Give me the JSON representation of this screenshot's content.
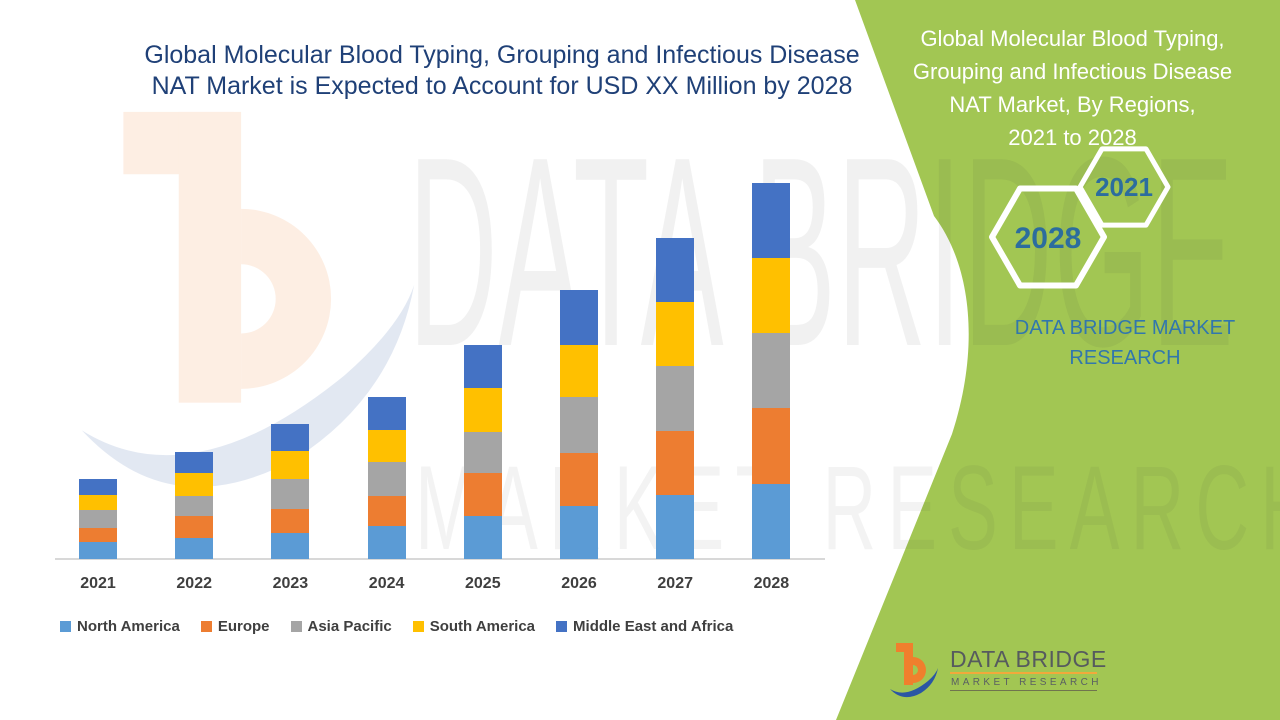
{
  "colors": {
    "green_band": "#A2C653",
    "title_navy": "#1F4077",
    "hex_year_blue": "#2C6D9E",
    "brand_blue": "#3177AD",
    "axis_gray": "#D8D8D8",
    "label_gray": "#3F3F3F",
    "logo_text_gray": "#565B5E",
    "logo_orange": "#F07F2D",
    "logo_swoosh_blue": "#2A56A4"
  },
  "main_title": {
    "lines": [
      "Global Molecular Blood Typing, Grouping and Infectious Disease",
      "NAT Market is Expected to Account for USD XX Million by 2028"
    ]
  },
  "right_panel": {
    "title_lines": [
      "Global Molecular Blood Typing,",
      "Grouping and Infectious Disease",
      "NAT Market, By Regions,",
      "2021 to 2028"
    ],
    "hexagons": [
      {
        "label": "2021"
      },
      {
        "label": "2028"
      }
    ],
    "brand_text_lines": [
      "DATA BRIDGE MARKET",
      "RESEARCH"
    ]
  },
  "watermark": {
    "line1": "DATA BRIDGE",
    "line2": "MARKET RESEARCH"
  },
  "footer_logo": {
    "line1": "DATA BRIDGE",
    "line2": "MARKET RESEARCH"
  },
  "chart_data": {
    "type": "bar",
    "stacked": true,
    "title": "Global Molecular Blood Typing, Grouping and Infectious Disease NAT Market is Expected to Account for USD XX Million by 2028",
    "categories": [
      "2021",
      "2022",
      "2023",
      "2024",
      "2025",
      "2026",
      "2027",
      "2028"
    ],
    "series": [
      {
        "name": "North America",
        "color": "#5B9BD5",
        "values": [
          17,
          21,
          26,
          33,
          43,
          53,
          64,
          75
        ]
      },
      {
        "name": "Europe",
        "color": "#ED7D31",
        "values": [
          14,
          22,
          24,
          30,
          43,
          53,
          64,
          76
        ]
      },
      {
        "name": "Asia Pacific",
        "color": "#A5A5A5",
        "values": [
          18,
          20,
          30,
          34,
          41,
          56,
          65,
          75
        ]
      },
      {
        "name": "South America",
        "color": "#FFC000",
        "values": [
          15,
          23,
          28,
          32,
          44,
          52,
          64,
          75
        ]
      },
      {
        "name": "Middle East and Africa",
        "color": "#4472C4",
        "values": [
          16,
          21,
          27,
          33,
          43,
          55,
          64,
          75
        ]
      }
    ],
    "ylabel": "",
    "xlabel": "",
    "value_axis_visible": false,
    "units": "relative units (actual values masked as USD XX Million)",
    "gridlines": false,
    "legend_position": "bottom"
  }
}
